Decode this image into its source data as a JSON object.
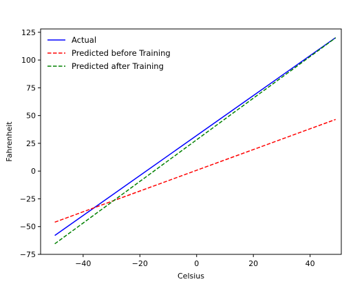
{
  "chart_data": {
    "type": "line",
    "title": "",
    "xlabel": "Celsius",
    "ylabel": "Fahrenheit",
    "xlim": [
      -55,
      51
    ],
    "ylim": [
      -75,
      128
    ],
    "grid": false,
    "legend_placement": "top-left",
    "x_ticks": [
      -40,
      -20,
      0,
      20,
      40
    ],
    "x_tick_labels": [
      "−40",
      "−20",
      "0",
      "20",
      "40"
    ],
    "y_ticks": [
      -75,
      -50,
      -25,
      0,
      25,
      50,
      75,
      100,
      125
    ],
    "y_tick_labels": [
      "−75",
      "−50",
      "−25",
      "0",
      "25",
      "50",
      "75",
      "100",
      "125"
    ],
    "series": [
      {
        "name": "Actual",
        "color": "#0000ff",
        "style": "solid",
        "x": [
          -50,
          49
        ],
        "y": [
          -58,
          120.2
        ]
      },
      {
        "name": "Predicted before Training",
        "color": "#ff0000",
        "style": "dashed",
        "x": [
          -50,
          49
        ],
        "y": [
          -46,
          46.5
        ]
      },
      {
        "name": "Predicted after Training",
        "color": "#008000",
        "style": "dashed",
        "x": [
          -50,
          49
        ],
        "y": [
          -65.5,
          120
        ]
      }
    ]
  }
}
